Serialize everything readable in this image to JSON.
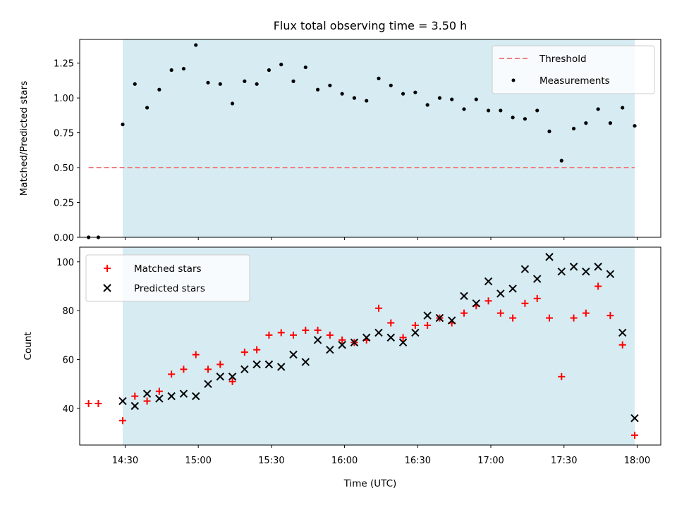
{
  "chart_data": [
    {
      "type": "scatter",
      "title": "Flux total observing time = 3.50 h",
      "xlabel": "",
      "ylabel": "Matched/Predicted stars",
      "ylim": [
        0,
        1.42
      ],
      "yticks": [
        "0.00",
        "0.25",
        "0.50",
        "0.75",
        "1.00",
        "1.25"
      ],
      "shaded_span": {
        "start": "14:29",
        "end": "17:59",
        "color": "#add8e6"
      },
      "threshold": {
        "name": "Threshold",
        "value": 0.5,
        "x_start": "14:15",
        "x_end": "17:59",
        "color": "#f08080",
        "style": "dashed"
      },
      "legend": {
        "position": "upper right",
        "entries": [
          "Threshold",
          "Measurements"
        ]
      },
      "series": [
        {
          "name": "Measurements",
          "marker": "point",
          "color": "#000000",
          "x": [
            "14:15",
            "14:19",
            "14:29",
            "14:34",
            "14:39",
            "14:44",
            "14:49",
            "14:54",
            "14:59",
            "15:04",
            "15:09",
            "15:14",
            "15:19",
            "15:24",
            "15:29",
            "15:34",
            "15:39",
            "15:44",
            "15:49",
            "15:54",
            "15:59",
            "16:04",
            "16:09",
            "16:14",
            "16:19",
            "16:24",
            "16:29",
            "16:34",
            "16:39",
            "16:44",
            "16:49",
            "16:54",
            "16:59",
            "17:04",
            "17:09",
            "17:14",
            "17:19",
            "17:24",
            "17:29",
            "17:34",
            "17:39",
            "17:44",
            "17:49",
            "17:54",
            "17:59"
          ],
          "y": [
            0.0,
            0.0,
            0.81,
            1.1,
            0.93,
            1.06,
            1.2,
            1.21,
            1.38,
            1.11,
            1.1,
            0.96,
            1.12,
            1.1,
            1.2,
            1.24,
            1.12,
            1.22,
            1.06,
            1.09,
            1.03,
            1.0,
            0.98,
            1.14,
            1.09,
            1.03,
            1.04,
            0.95,
            1.0,
            0.99,
            0.92,
            0.99,
            0.91,
            0.91,
            0.86,
            0.85,
            0.91,
            0.76,
            0.55,
            0.78,
            0.82,
            0.92,
            0.82,
            0.93,
            0.8
          ]
        }
      ]
    },
    {
      "type": "scatter",
      "title": "",
      "xlabel": "Time (UTC)",
      "ylabel": "Count",
      "ylim": [
        25,
        106
      ],
      "yticks": [
        "40",
        "60",
        "80",
        "100"
      ],
      "xticks": [
        "14:30",
        "15:00",
        "15:30",
        "16:00",
        "16:30",
        "17:00",
        "17:30",
        "18:00"
      ],
      "shaded_span": {
        "start": "14:29",
        "end": "17:59",
        "color": "#add8e6"
      },
      "legend": {
        "position": "upper left",
        "entries": [
          "Matched stars",
          "Predicted stars"
        ]
      },
      "series": [
        {
          "name": "Matched stars",
          "marker": "plus",
          "color": "#ff0000",
          "x": [
            "14:15",
            "14:19",
            "14:29",
            "14:34",
            "14:39",
            "14:44",
            "14:49",
            "14:54",
            "14:59",
            "15:04",
            "15:09",
            "15:14",
            "15:19",
            "15:24",
            "15:29",
            "15:34",
            "15:39",
            "15:44",
            "15:49",
            "15:54",
            "15:59",
            "16:04",
            "16:09",
            "16:14",
            "16:19",
            "16:24",
            "16:29",
            "16:34",
            "16:39",
            "16:44",
            "16:49",
            "16:54",
            "16:59",
            "17:04",
            "17:09",
            "17:14",
            "17:19",
            "17:24",
            "17:29",
            "17:34",
            "17:39",
            "17:44",
            "17:49",
            "17:54",
            "17:59"
          ],
          "y": [
            42,
            42,
            35,
            45,
            43,
            47,
            54,
            56,
            62,
            56,
            58,
            51,
            63,
            64,
            70,
            71,
            70,
            72,
            72,
            70,
            68,
            67,
            68,
            81,
            75,
            69,
            74,
            74,
            77,
            75,
            79,
            82,
            84,
            79,
            77,
            83,
            85,
            77,
            53,
            77,
            79,
            90,
            78,
            66,
            29
          ]
        },
        {
          "name": "Predicted stars",
          "marker": "x",
          "color": "#000000",
          "x": [
            "14:29",
            "14:34",
            "14:39",
            "14:44",
            "14:49",
            "14:54",
            "14:59",
            "15:04",
            "15:09",
            "15:14",
            "15:19",
            "15:24",
            "15:29",
            "15:34",
            "15:39",
            "15:44",
            "15:49",
            "15:54",
            "15:59",
            "16:04",
            "16:09",
            "16:14",
            "16:19",
            "16:24",
            "16:29",
            "16:34",
            "16:39",
            "16:44",
            "16:49",
            "16:54",
            "16:59",
            "17:04",
            "17:09",
            "17:14",
            "17:19",
            "17:24",
            "17:29",
            "17:34",
            "17:39",
            "17:44",
            "17:49",
            "17:54",
            "17:59"
          ],
          "y": [
            43,
            41,
            46,
            44,
            45,
            46,
            45,
            50,
            53,
            53,
            56,
            58,
            58,
            57,
            62,
            59,
            68,
            64,
            66,
            67,
            69,
            71,
            69,
            67,
            71,
            78,
            77,
            76,
            86,
            83,
            92,
            87,
            89,
            97,
            93,
            102,
            96,
            98,
            96,
            98,
            95,
            71,
            36
          ]
        }
      ]
    }
  ]
}
